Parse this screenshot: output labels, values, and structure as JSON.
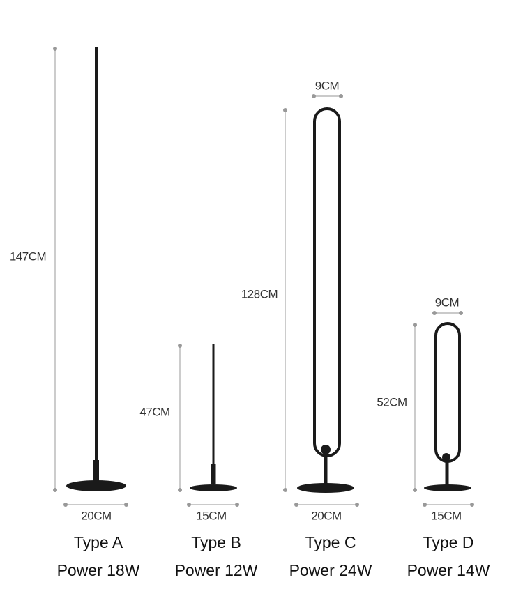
{
  "products": [
    {
      "type": "Type A",
      "power": "Power 18W",
      "height": "147CM",
      "base": "20CM"
    },
    {
      "type": "Type B",
      "power": "Power 12W",
      "height": "47CM",
      "base": "15CM"
    },
    {
      "type": "Type C",
      "power": "Power 24W",
      "height": "128CM",
      "base": "20CM",
      "ring": "9CM"
    },
    {
      "type": "Type D",
      "power": "Power 14W",
      "height": "52CM",
      "base": "15CM",
      "ring": "9CM"
    }
  ]
}
